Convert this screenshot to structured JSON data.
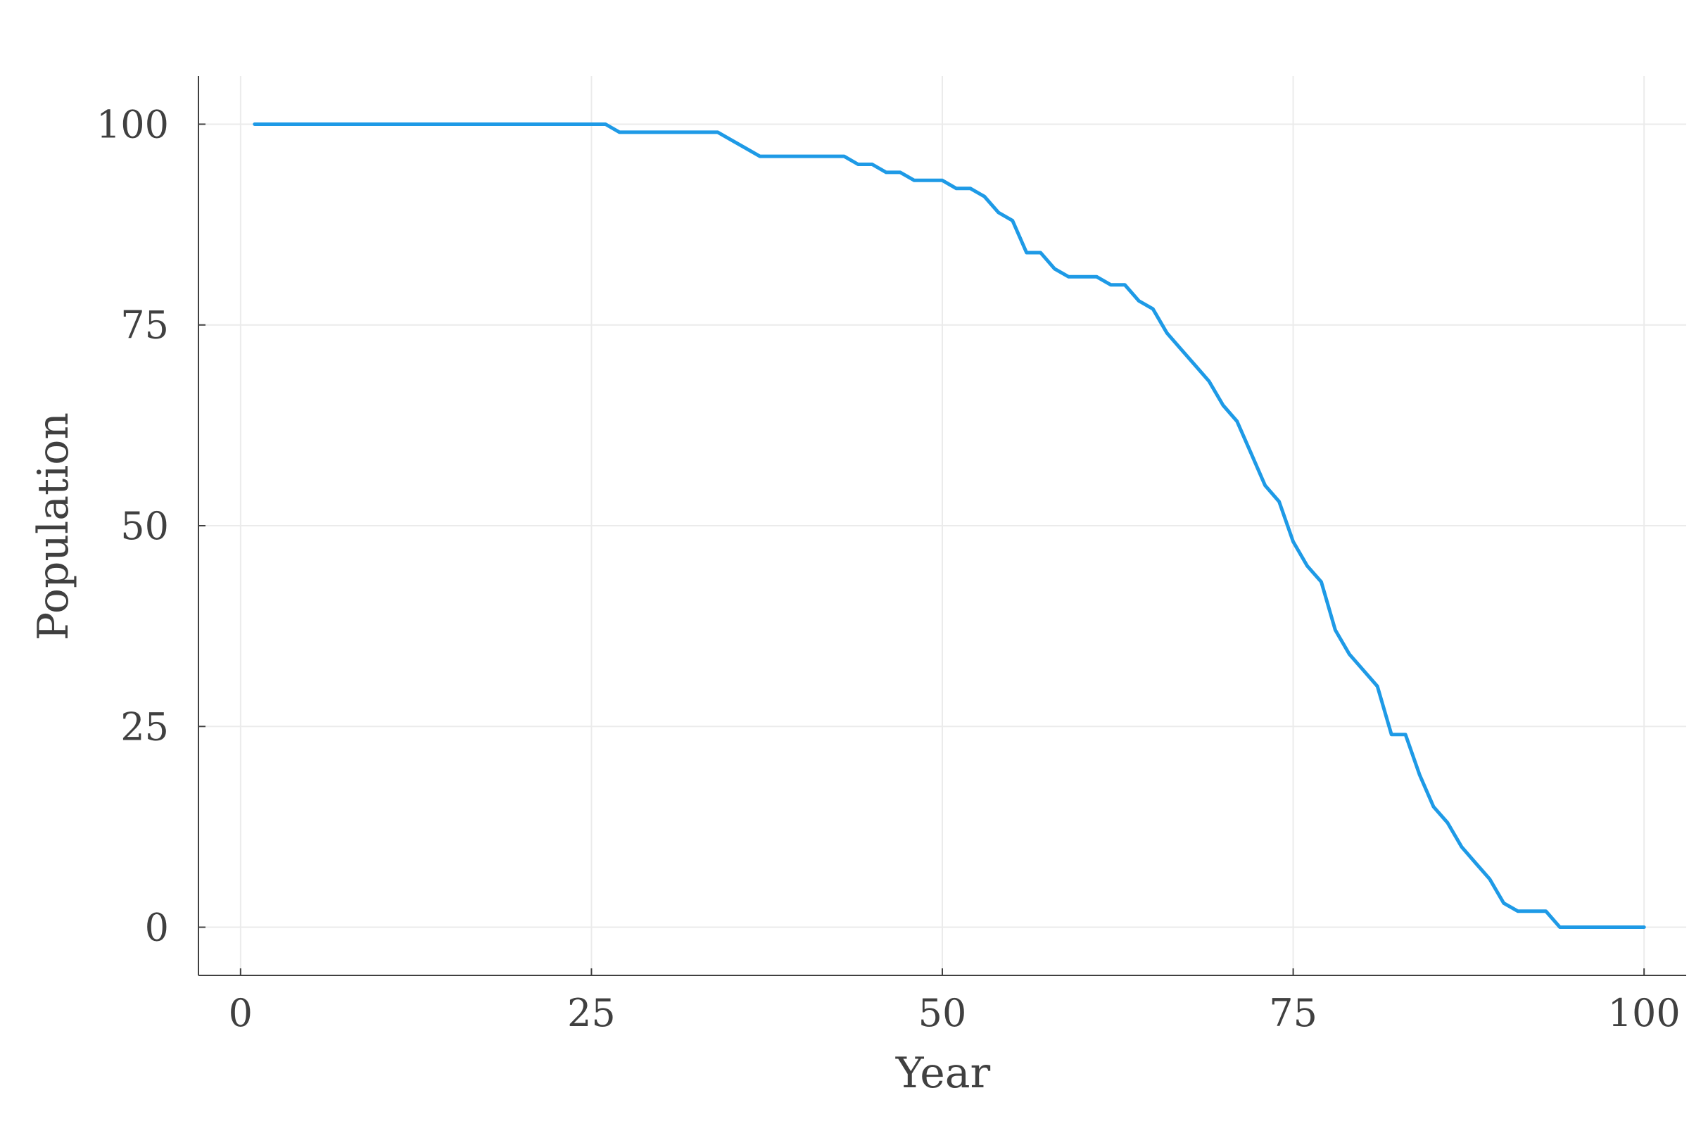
{
  "chart_data": {
    "type": "line",
    "title": "",
    "xlabel": "Year",
    "ylabel": "Population",
    "xlim": [
      -3.0,
      103.0
    ],
    "ylim": [
      -6.0,
      106.0
    ],
    "xticks": [
      0,
      25,
      50,
      75,
      100
    ],
    "xtick_labels": [
      "0",
      "25",
      "50",
      "75",
      "100"
    ],
    "yticks": [
      0,
      25,
      50,
      75,
      100
    ],
    "ytick_labels": [
      "0",
      "25",
      "50",
      "75",
      "100"
    ],
    "grid": true,
    "legend": "none",
    "colors": {
      "line": "#1e9ae6",
      "axis": "#404040",
      "grid": "#ebebeb"
    },
    "series": [
      {
        "x": [
          1,
          2,
          3,
          4,
          5,
          6,
          7,
          8,
          9,
          10,
          11,
          12,
          13,
          14,
          15,
          16,
          17,
          18,
          19,
          20,
          21,
          22,
          23,
          24,
          25,
          26,
          27,
          28,
          29,
          30,
          31,
          32,
          33,
          34,
          35,
          36,
          37,
          38,
          39,
          40,
          41,
          42,
          43,
          44,
          45,
          46,
          47,
          48,
          49,
          50,
          51,
          52,
          53,
          54,
          55,
          56,
          57,
          58,
          59,
          60,
          61,
          62,
          63,
          64,
          65,
          66,
          67,
          68,
          69,
          70,
          71,
          72,
          73,
          74,
          75,
          76,
          77,
          78,
          79,
          80,
          81,
          82,
          83,
          84,
          85,
          86,
          87,
          88,
          89,
          90,
          91,
          92,
          93,
          94,
          95,
          96,
          97,
          98,
          99,
          100
        ],
        "y": [
          100,
          100,
          100,
          100,
          100,
          100,
          100,
          100,
          100,
          100,
          100,
          100,
          100,
          100,
          100,
          100,
          100,
          100,
          100,
          100,
          100,
          100,
          100,
          100,
          100,
          100,
          99,
          99,
          99,
          99,
          99,
          99,
          99,
          99,
          98,
          97,
          96,
          96,
          96,
          96,
          96,
          96,
          96,
          95,
          95,
          94,
          94,
          93,
          93,
          93,
          92,
          92,
          91,
          89,
          88,
          84,
          84,
          82,
          81,
          81,
          81,
          80,
          80,
          78,
          77,
          74,
          72,
          70,
          68,
          65,
          63,
          59,
          55,
          53,
          48,
          45,
          43,
          37,
          34,
          32,
          30,
          24,
          24,
          19,
          15,
          13,
          10,
          8,
          6,
          3,
          2,
          2,
          2,
          0,
          0,
          0,
          0,
          0,
          0,
          0
        ]
      }
    ]
  }
}
